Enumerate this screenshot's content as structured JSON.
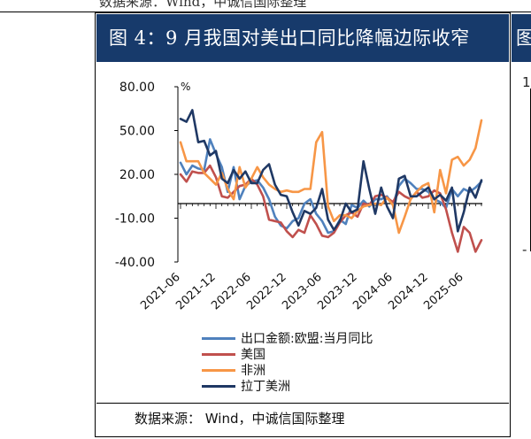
{
  "page": {
    "top_cut_text": "数据来源：Wind，中诚信国际整理",
    "right_header_text": "图",
    "right_tick_label": "1",
    "right_dash_label": "-"
  },
  "chart_data": {
    "type": "line",
    "title": "图 4：9 月我国对美出口同比降幅边际收窄",
    "ylabel": "%",
    "xlabel": "",
    "ylim": [
      -40,
      80
    ],
    "yticks": [
      80,
      50,
      20,
      -10,
      -40
    ],
    "ytick_labels": [
      "80.00",
      "50.00",
      "20.00",
      "-10.00",
      "-40.00"
    ],
    "xlim": [
      "2021-06",
      "2025-09"
    ],
    "xtick_labels": [
      "2021-06",
      "2021-12",
      "2022-06",
      "2022-12",
      "2023-06",
      "2023-12",
      "2024-06",
      "2024-12",
      "2025-06"
    ],
    "x": [
      "2021-06",
      "2021-07",
      "2021-08",
      "2021-09",
      "2021-10",
      "2021-11",
      "2021-12",
      "2022-01",
      "2022-02",
      "2022-03",
      "2022-04",
      "2022-05",
      "2022-06",
      "2022-07",
      "2022-08",
      "2022-09",
      "2022-10",
      "2022-11",
      "2022-12",
      "2023-01",
      "2023-02",
      "2023-03",
      "2023-04",
      "2023-05",
      "2023-06",
      "2023-07",
      "2023-08",
      "2023-09",
      "2023-10",
      "2023-11",
      "2023-12",
      "2024-01",
      "2024-02",
      "2024-03",
      "2024-04",
      "2024-05",
      "2024-06",
      "2024-07",
      "2024-08",
      "2024-09",
      "2024-10",
      "2024-11",
      "2024-12",
      "2025-01",
      "2025-02",
      "2025-03",
      "2025-04",
      "2025-05",
      "2025-06",
      "2025-07",
      "2025-08",
      "2025-09"
    ],
    "series": [
      {
        "name": "出口金额:欧盟:当月同比",
        "color": "#4f81bd",
        "values": [
          28,
          20,
          26,
          24,
          23,
          44,
          34,
          25,
          8,
          25,
          3,
          12,
          15,
          16,
          11,
          3,
          -9,
          -15,
          -17,
          -12,
          -10,
          0,
          3,
          -7,
          -12,
          -20,
          -19,
          -11,
          -14,
          -1,
          -3,
          2,
          -2,
          3,
          3,
          5,
          -1,
          12,
          17,
          14,
          10,
          10,
          8,
          3,
          1,
          -3,
          10,
          5,
          10,
          8,
          11,
          15
        ]
      },
      {
        "name": "美国",
        "color": "#c0504d",
        "values": [
          20,
          15,
          22,
          21,
          21,
          26,
          18,
          5,
          4,
          8,
          12,
          13,
          17,
          13,
          5,
          -11,
          -12,
          -13,
          -19,
          -23,
          -18,
          -20,
          -8,
          -14,
          -22,
          -23,
          -20,
          -13,
          -8,
          -6,
          -9,
          0,
          -1,
          5,
          6,
          4,
          1,
          8,
          5,
          3,
          8,
          4,
          5,
          9,
          7,
          -4,
          -20,
          -33,
          -16,
          -20,
          -33,
          -25
        ]
      },
      {
        "name": "非洲",
        "color": "#f79646",
        "values": [
          42,
          29,
          29,
          29,
          21,
          17,
          13,
          21,
          10,
          3,
          25,
          11,
          17,
          25,
          18,
          13,
          10,
          8,
          9,
          8,
          8,
          10,
          10,
          42,
          49,
          -2,
          -12,
          -8,
          -8,
          -10,
          -5,
          -2,
          -1,
          0,
          -1,
          4,
          -1,
          -20,
          -9,
          3,
          8,
          12,
          14,
          -6,
          23,
          7,
          30,
          32,
          26,
          30,
          38,
          57
        ]
      },
      {
        "name": "拉丁美洲",
        "color": "#1f3864",
        "values": [
          58,
          56,
          64,
          42,
          43,
          33,
          36,
          17,
          14,
          23,
          17,
          22,
          14,
          14,
          23,
          27,
          13,
          6,
          5,
          -6,
          -15,
          -5,
          -7,
          -3,
          10,
          -11,
          -18,
          -12,
          0,
          -6,
          -4,
          29,
          10,
          -7,
          11,
          -2,
          -10,
          17,
          19,
          5,
          5,
          8,
          11,
          3,
          6,
          2,
          11,
          -19,
          -6,
          11,
          4,
          16
        ]
      }
    ]
  },
  "source": "数据来源： Wind，中诚信国际整理"
}
